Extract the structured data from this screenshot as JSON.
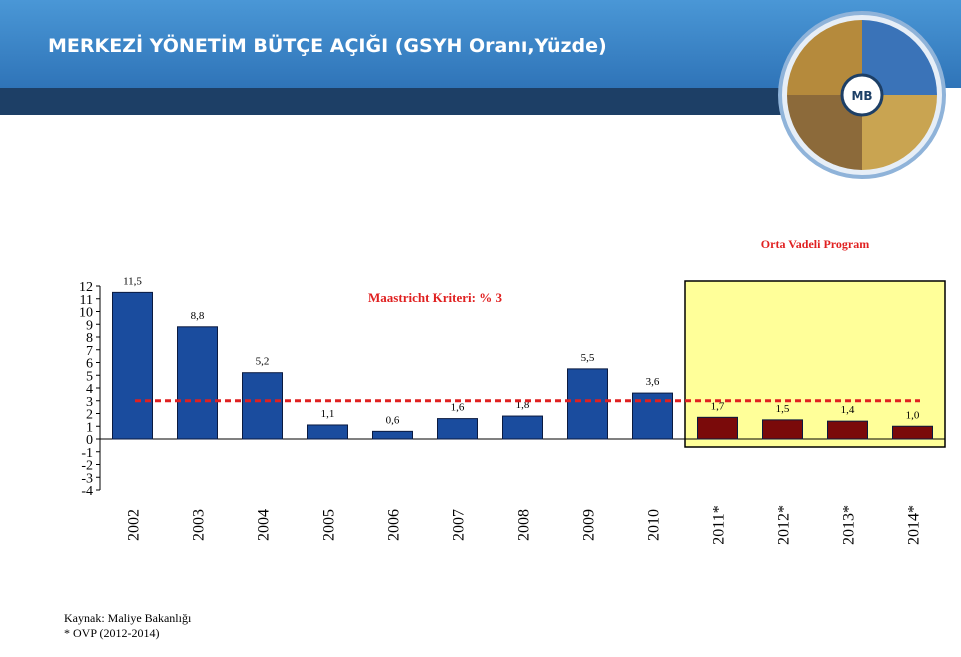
{
  "header": {
    "title": "MERKEZİ YÖNETİM BÜTÇE AÇIĞI (GSYH Oranı,Yüzde)",
    "logo": "MB"
  },
  "chart_data": {
    "type": "bar",
    "categories": [
      "2002",
      "2003",
      "2004",
      "2005",
      "2006",
      "2007",
      "2008",
      "2009",
      "2010",
      "2011*",
      "2012*",
      "2013*",
      "2014*"
    ],
    "values": [
      11.5,
      8.8,
      5.2,
      1.1,
      0.6,
      1.6,
      1.8,
      5.5,
      3.6,
      1.7,
      1.5,
      1.4,
      1.0
    ],
    "value_labels": [
      "11,5",
      "8,8",
      "5,2",
      "1,1",
      "0,6",
      "1,6",
      "1,8",
      "5,5",
      "3,6",
      "1,7",
      "1,5",
      "1,4",
      "1,0"
    ],
    "colors": [
      "#1a4c9e",
      "#1a4c9e",
      "#1a4c9e",
      "#1a4c9e",
      "#1a4c9e",
      "#1a4c9e",
      "#1a4c9e",
      "#1a4c9e",
      "#1a4c9e",
      "#7a0a0a",
      "#7a0a0a",
      "#7a0a0a",
      "#7a0a0a"
    ],
    "ylim": [
      -4,
      12
    ],
    "yticks": [
      -4,
      -3,
      -2,
      -1,
      0,
      1,
      2,
      3,
      4,
      5,
      6,
      7,
      8,
      9,
      10,
      11,
      12
    ],
    "reference_line": {
      "value": 3,
      "label": "Maastricht Kriteri: % 3",
      "color": "#e02020"
    },
    "highlight": {
      "label": "Orta Vadeli Program",
      "from": "2011*",
      "to": "2014*",
      "color": "#ffff99"
    }
  },
  "footer": {
    "source": "Kaynak: Maliye Bakanlığı",
    "note": "* OVP (2012-2014)"
  }
}
